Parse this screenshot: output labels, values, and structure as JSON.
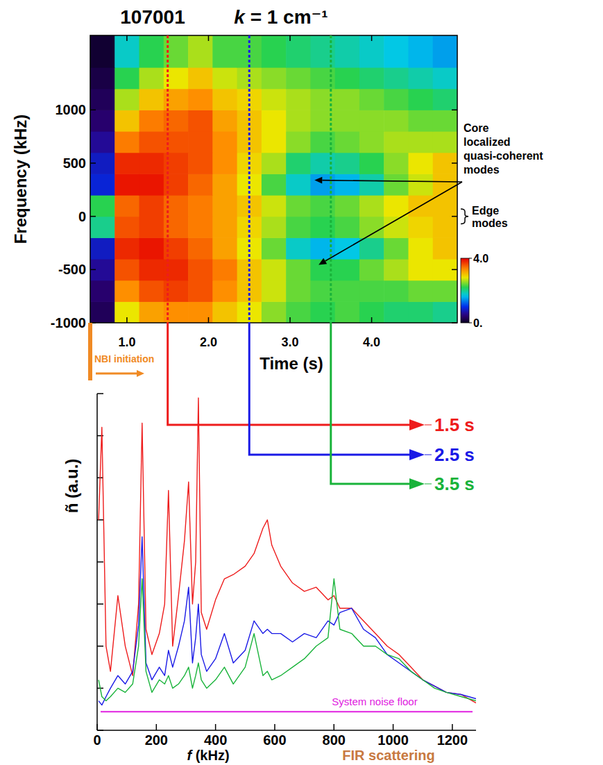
{
  "chart_data": [
    {
      "type": "heatmap",
      "title": "107001",
      "subtitle": "k = 1 cm⁻¹",
      "x_label": "Time (s)",
      "y_label": "Frequency (kHz)",
      "xlim": [
        0.55,
        5.05
      ],
      "xticks": [
        {
          "value": 1,
          "label": "1.0"
        },
        {
          "value": 2,
          "label": "2.0"
        },
        {
          "value": 3,
          "label": "3.0"
        },
        {
          "value": 4,
          "label": "4.0"
        }
      ],
      "ylim": [
        -1000,
        1700
      ],
      "yticks": [
        -1000,
        -500,
        0,
        500,
        1000
      ],
      "x_bins": [
        0.55,
        0.85,
        1.15,
        1.45,
        1.75,
        2.05,
        2.35,
        2.65,
        2.95,
        3.25,
        3.55,
        3.85,
        4.15,
        4.45,
        4.75,
        5.05
      ],
      "y_bins": [
        -1000,
        -800,
        -600,
        -400,
        -200,
        0,
        200,
        400,
        600,
        800,
        1000,
        1200,
        1400,
        1700
      ],
      "z": [
        [
          0.3,
          2.8,
          3.2,
          3.3,
          3.3,
          3.0,
          2.8,
          2.5,
          2.3,
          2.2,
          2.3,
          2.2,
          2.1,
          2.1,
          2.0
        ],
        [
          0.4,
          3.3,
          3.6,
          3.7,
          3.6,
          3.3,
          3.0,
          2.7,
          2.4,
          2.3,
          2.3,
          2.3,
          2.3,
          2.4,
          2.4
        ],
        [
          0.6,
          3.6,
          3.8,
          3.8,
          3.6,
          3.4,
          3.0,
          2.7,
          2.4,
          2.2,
          2.2,
          2.4,
          2.6,
          2.8,
          2.8
        ],
        [
          0.8,
          3.8,
          3.9,
          3.7,
          3.5,
          3.2,
          2.8,
          2.4,
          1.8,
          1.6,
          1.7,
          2.0,
          2.4,
          2.8,
          3.0
        ],
        [
          2.0,
          3.6,
          3.7,
          3.5,
          3.4,
          3.2,
          2.9,
          2.6,
          2.3,
          2.2,
          2.3,
          2.5,
          2.7,
          2.9,
          3.0
        ],
        [
          2.2,
          3.5,
          3.7,
          3.5,
          3.4,
          3.2,
          3.0,
          2.7,
          2.4,
          2.3,
          2.4,
          2.6,
          2.8,
          3.0,
          3.0
        ],
        [
          0.9,
          3.9,
          3.9,
          3.7,
          3.5,
          3.2,
          2.8,
          2.3,
          1.8,
          1.5,
          1.6,
          1.9,
          2.4,
          2.7,
          3.0
        ],
        [
          0.8,
          3.8,
          3.8,
          3.7,
          3.6,
          3.3,
          2.9,
          2.6,
          2.1,
          1.9,
          2.0,
          2.2,
          2.5,
          2.8,
          3.0
        ],
        [
          0.6,
          3.4,
          3.6,
          3.6,
          3.6,
          3.3,
          3.0,
          2.8,
          2.5,
          2.3,
          2.4,
          2.5,
          2.6,
          2.6,
          2.6
        ],
        [
          0.4,
          3.0,
          3.4,
          3.5,
          3.6,
          3.2,
          3.0,
          2.8,
          2.6,
          2.5,
          2.5,
          2.5,
          2.5,
          2.4,
          2.4
        ],
        [
          0.3,
          2.6,
          3.0,
          3.2,
          3.3,
          3.0,
          2.9,
          2.7,
          2.6,
          2.5,
          2.5,
          2.4,
          2.3,
          2.2,
          2.1
        ],
        [
          0.2,
          2.2,
          2.6,
          2.8,
          3.0,
          2.7,
          2.6,
          2.5,
          2.4,
          2.3,
          2.2,
          2.1,
          2.0,
          1.9,
          1.8
        ],
        [
          0.1,
          1.8,
          2.2,
          2.4,
          2.6,
          2.3,
          2.3,
          2.2,
          2.1,
          2.0,
          1.9,
          1.8,
          1.7,
          1.6,
          1.5
        ]
      ],
      "colorbar": {
        "range": [
          0,
          4
        ],
        "ticks": [
          {
            "value": 4,
            "label": "4.0"
          },
          {
            "value": 0,
            "label": "0."
          }
        ]
      },
      "markers": [
        {
          "time": 1.5,
          "color": "#ee1c1c"
        },
        {
          "time": 2.5,
          "color": "#1a1ae6"
        },
        {
          "time": 3.5,
          "color": "#19b33a"
        }
      ],
      "nbi": {
        "text": "NBI initiation",
        "time": 0.55,
        "color": "#f08a24"
      },
      "annotations": [
        {
          "lines": [
            "Core",
            "localized",
            "quasi-coherent",
            "modes"
          ],
          "arrow_to": [
            [
              3.3,
              340
            ],
            [
              3.35,
              -455
            ]
          ]
        },
        {
          "lines": [
            "Edge",
            "modes"
          ],
          "y_range": [
            -70,
            70
          ]
        }
      ]
    },
    {
      "type": "line",
      "x_label": "f (kHz)",
      "y_label": "ñ (a.u.)",
      "xlim": [
        0,
        1280
      ],
      "xticks": [
        0,
        200,
        400,
        600,
        800,
        1000,
        1200
      ],
      "ylim": [
        0,
        8
      ],
      "yticks": [
        0,
        1,
        2,
        3,
        4,
        5,
        6,
        7,
        8
      ],
      "tick_labels": "x",
      "x": [
        5,
        16,
        30,
        45,
        70,
        95,
        120,
        140,
        152,
        165,
        185,
        210,
        228,
        241,
        255,
        275,
        295,
        309,
        322,
        333,
        342,
        352,
        370,
        400,
        430,
        460,
        500,
        530,
        560,
        575,
        590,
        620,
        660,
        700,
        740,
        780,
        800,
        820,
        860,
        900,
        940,
        980,
        1020,
        1060,
        1100,
        1140,
        1180,
        1230,
        1280
      ],
      "series": [
        {
          "name": "1.5 s",
          "color": "#ee1c1c",
          "values": [
            5.0,
            7.2,
            2.0,
            1.4,
            3.2,
            2.0,
            1.3,
            3.0,
            7.3,
            2.4,
            1.8,
            2.3,
            3.0,
            5.7,
            2.0,
            3.2,
            4.5,
            5.9,
            3.0,
            4.0,
            7.9,
            2.8,
            2.4,
            3.1,
            3.6,
            3.7,
            3.9,
            4.2,
            4.8,
            5.0,
            4.4,
            3.9,
            3.5,
            3.3,
            3.4,
            3.1,
            3.2,
            2.9,
            2.9,
            2.6,
            2.3,
            2.0,
            1.8,
            1.5,
            1.2,
            1.05,
            0.9,
            0.85,
            0.65
          ]
        },
        {
          "name": "2.5 s",
          "color": "#1a1ae6",
          "values": [
            0.7,
            0.6,
            0.8,
            1.0,
            1.3,
            1.1,
            1.4,
            2.5,
            4.6,
            1.6,
            1.2,
            1.5,
            1.3,
            1.9,
            1.5,
            2.0,
            2.6,
            3.4,
            1.6,
            2.2,
            3.0,
            1.8,
            1.4,
            1.7,
            2.3,
            1.6,
            1.9,
            2.6,
            2.3,
            2.4,
            2.3,
            2.3,
            2.1,
            2.3,
            2.2,
            2.6,
            2.5,
            2.8,
            2.9,
            2.4,
            2.2,
            1.8,
            1.6,
            1.4,
            1.2,
            1.05,
            0.9,
            0.85,
            0.75
          ]
        },
        {
          "name": "3.5 s",
          "color": "#19b33a",
          "values": [
            1.2,
            0.8,
            0.7,
            0.8,
            1.0,
            0.9,
            1.1,
            2.0,
            3.6,
            1.4,
            0.9,
            1.2,
            1.1,
            1.3,
            1.0,
            1.1,
            1.3,
            1.5,
            1.0,
            1.3,
            1.6,
            1.2,
            1.0,
            1.2,
            1.5,
            1.1,
            1.5,
            2.3,
            1.3,
            1.4,
            1.2,
            1.3,
            1.5,
            1.7,
            2.0,
            2.2,
            3.6,
            2.4,
            2.3,
            2.0,
            2.0,
            1.8,
            1.7,
            1.4,
            1.2,
            1.0,
            0.9,
            0.8,
            0.7
          ]
        }
      ],
      "annotations": [
        {
          "text": "System noise floor",
          "y": 0.44,
          "color": "#e020e0"
        },
        {
          "text": "FIR scattering",
          "color": "#c87941"
        }
      ]
    }
  ]
}
